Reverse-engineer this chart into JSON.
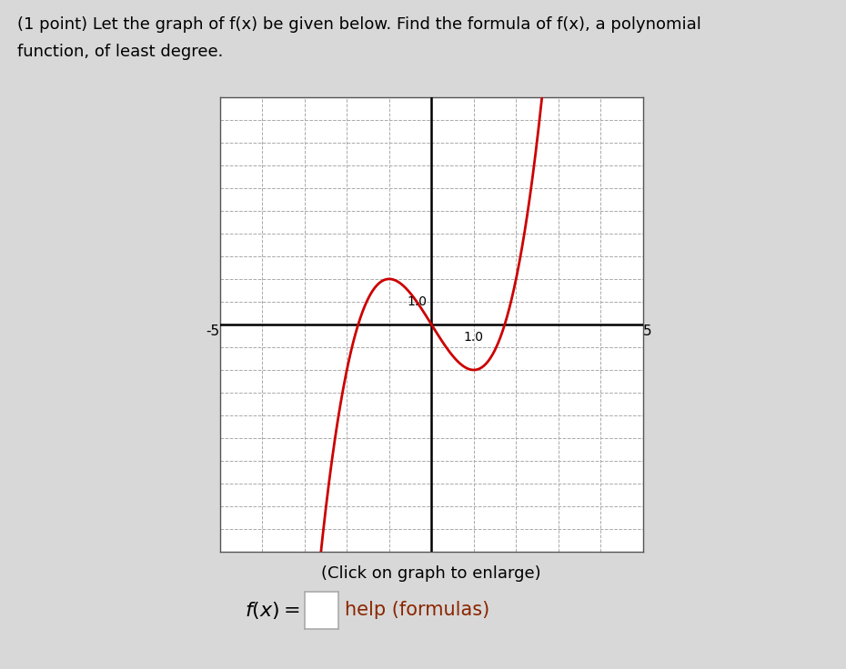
{
  "title_line1": "(1 point) Let the graph of f(x) be given below. Find the formula of f(x), a polynomial",
  "title_line2": "function, of least degree.",
  "xlim": [
    -5,
    5
  ],
  "ylim": [
    -10,
    10
  ],
  "curve_color": "#cc0000",
  "curve_linewidth": 2.0,
  "bg_color": "#d8d8d8",
  "plot_bg_color": "#ffffff",
  "grid_color": "#aaaaaa",
  "grid_linestyle": "--",
  "axis_color": "#000000",
  "click_text": "(Click on graph to enlarge)",
  "help_text": "help (formulas)",
  "help_color": "#8B2500",
  "text_font_size": 13,
  "formula_font_size": 15
}
